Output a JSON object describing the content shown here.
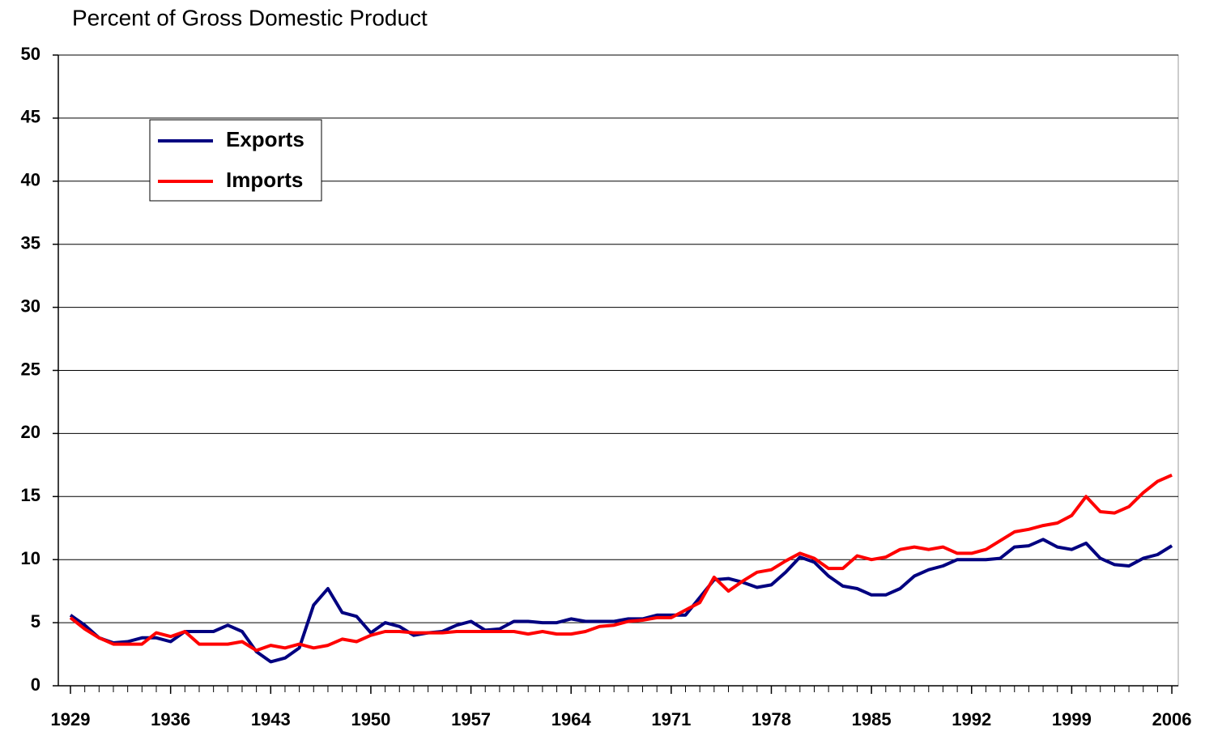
{
  "chart_data": {
    "type": "line",
    "title": "Percent of Gross Domestic Product",
    "x": [
      1929,
      1930,
      1931,
      1932,
      1933,
      1934,
      1935,
      1936,
      1937,
      1938,
      1939,
      1940,
      1941,
      1942,
      1943,
      1944,
      1945,
      1946,
      1947,
      1948,
      1949,
      1950,
      1951,
      1952,
      1953,
      1954,
      1955,
      1956,
      1957,
      1958,
      1959,
      1960,
      1961,
      1962,
      1963,
      1964,
      1965,
      1966,
      1967,
      1968,
      1969,
      1970,
      1971,
      1972,
      1973,
      1974,
      1975,
      1976,
      1977,
      1978,
      1979,
      1980,
      1981,
      1982,
      1983,
      1984,
      1985,
      1986,
      1987,
      1988,
      1989,
      1990,
      1991,
      1992,
      1993,
      1994,
      1995,
      1996,
      1997,
      1998,
      1999,
      2000,
      2001,
      2002,
      2003,
      2004,
      2005,
      2006
    ],
    "series": [
      {
        "name": "Exports",
        "color": "#000080",
        "values": [
          5.6,
          4.8,
          3.8,
          3.4,
          3.5,
          3.8,
          3.8,
          3.5,
          4.3,
          4.3,
          4.3,
          4.8,
          4.3,
          2.7,
          1.9,
          2.2,
          3.0,
          6.4,
          7.7,
          5.8,
          5.5,
          4.2,
          5.0,
          4.7,
          4.0,
          4.2,
          4.3,
          4.8,
          5.1,
          4.4,
          4.5,
          5.1,
          5.1,
          5.0,
          5.0,
          5.3,
          5.1,
          5.1,
          5.1,
          5.3,
          5.3,
          5.6,
          5.6,
          5.6,
          7.0,
          8.4,
          8.5,
          8.2,
          7.8,
          8.0,
          9.0,
          10.2,
          9.8,
          8.7,
          7.9,
          7.7,
          7.2,
          7.2,
          7.7,
          8.7,
          9.2,
          9.5,
          10.0,
          10.0,
          10.0,
          10.1,
          11.0,
          11.1,
          11.6,
          11.0,
          10.8,
          11.3,
          10.1,
          9.6,
          9.5,
          10.1,
          10.4,
          11.1
        ]
      },
      {
        "name": "Imports",
        "color": "#ff0000",
        "values": [
          5.4,
          4.5,
          3.8,
          3.3,
          3.3,
          3.3,
          4.2,
          3.9,
          4.3,
          3.3,
          3.3,
          3.3,
          3.5,
          2.8,
          3.2,
          3.0,
          3.3,
          3.0,
          3.2,
          3.7,
          3.5,
          4.0,
          4.3,
          4.3,
          4.2,
          4.2,
          4.2,
          4.3,
          4.3,
          4.3,
          4.3,
          4.3,
          4.1,
          4.3,
          4.1,
          4.1,
          4.3,
          4.7,
          4.8,
          5.1,
          5.2,
          5.4,
          5.4,
          6.0,
          6.6,
          8.6,
          7.5,
          8.3,
          9.0,
          9.2,
          9.9,
          10.5,
          10.1,
          9.3,
          9.3,
          10.3,
          10.0,
          10.2,
          10.8,
          11.0,
          10.8,
          11.0,
          10.5,
          10.5,
          10.8,
          11.5,
          12.2,
          12.4,
          12.7,
          12.9,
          13.5,
          15.0,
          13.8,
          13.7,
          14.2,
          15.3,
          16.2,
          16.7
        ]
      }
    ],
    "xlim": [
      1928.15,
      2006.45
    ],
    "xticks": [
      1929,
      1936,
      1943,
      1950,
      1957,
      1964,
      1971,
      1978,
      1985,
      1992,
      1999,
      2006
    ],
    "ylim": [
      0,
      50
    ],
    "yticks": [
      0,
      5,
      10,
      15,
      20,
      25,
      30,
      35,
      40,
      45,
      50
    ],
    "grid": true,
    "legend": "upper left"
  }
}
